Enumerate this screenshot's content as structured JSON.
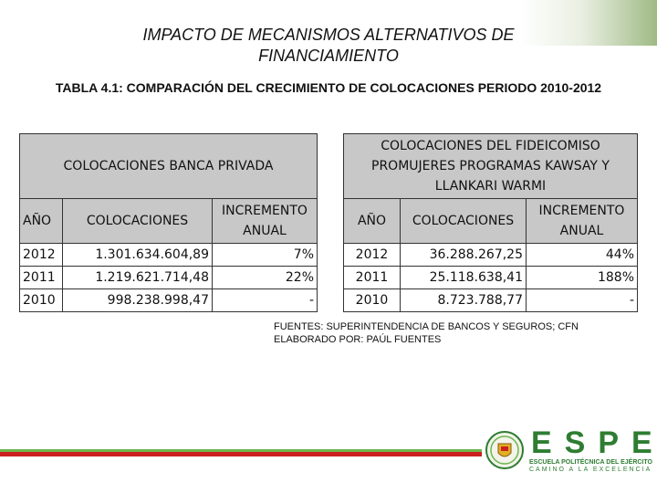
{
  "header": {
    "title_line1": "IMPACTO DE MECANISMOS ALTERNATIVOS DE",
    "title_line2": "FINANCIAMIENTO",
    "subtitle": "TABLA 4.1: COMPARACIÓN DEL CRECIMIENTO DE COLOCACIONES PERIODO 2010-2012"
  },
  "table_banca": {
    "title": "COLOCACIONES BANCA PRIVADA",
    "columns": [
      "AÑO",
      "COLOCACIONES",
      "INCREMENTO ANUAL"
    ],
    "rows": [
      [
        "2012",
        "1.301.634.604,89",
        "7%"
      ],
      [
        "2011",
        "1.219.621.714,48",
        "22%"
      ],
      [
        "2010",
        "998.238.998,47",
        "-"
      ]
    ]
  },
  "table_fideicomiso": {
    "title": "COLOCACIONES DEL FIDEICOMISO PROMUJERES PROGRAMAS KAWSAY Y LLANKARI WARMI",
    "columns": [
      "AÑO",
      "COLOCACIONES",
      "INCREMENTO ANUAL"
    ],
    "rows": [
      [
        "2012",
        "36.288.267,25",
        "44%"
      ],
      [
        "2011",
        "25.118.638,41",
        "188%"
      ],
      [
        "2010",
        "8.723.788,77",
        "-"
      ]
    ]
  },
  "notes": {
    "sources": "FUENTES: SUPERINTENDENCIA DE BANCOS Y SEGUROS; CFN",
    "author": "ELABORADO POR: PAÚL FUENTES"
  },
  "logo": {
    "name": "ESPE",
    "line1": "ESCUELA POLITÉCNICA DEL EJÉRCITO",
    "line2": "CAMINO A LA EXCELENCIA"
  },
  "colors": {
    "header_fill": "#c8c8c8",
    "brand_green": "#2e7d32",
    "stripe_red": "#cc1f1f",
    "stripe_green": "#6bb84f"
  }
}
